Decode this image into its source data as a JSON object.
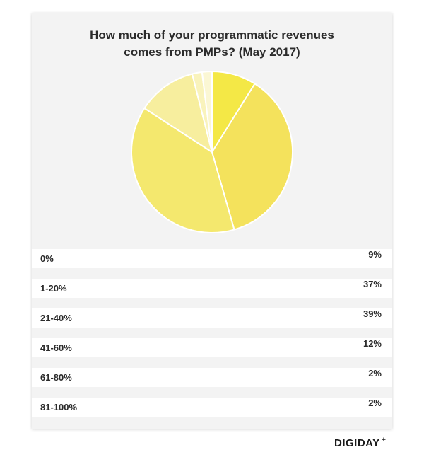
{
  "chart_data": {
    "type": "pie",
    "title_line1": "How much of your programmatic revenues",
    "title_line2": "comes from PMPs? (May 2017)",
    "categories": [
      "0%",
      "1-20%",
      "21-40%",
      "41-60%",
      "61-80%",
      "81-100%"
    ],
    "values": [
      9,
      37,
      39,
      12,
      2,
      2
    ],
    "value_labels": [
      "9%",
      "37%",
      "39%",
      "12%",
      "2%",
      "2%"
    ],
    "colors": [
      "#f4e846",
      "#f4e25c",
      "#f4e86e",
      "#f7ee9e",
      "#f9f3bc",
      "#fbf7d4"
    ]
  },
  "brand": {
    "name": "DIGIDAY",
    "mark": "+"
  }
}
